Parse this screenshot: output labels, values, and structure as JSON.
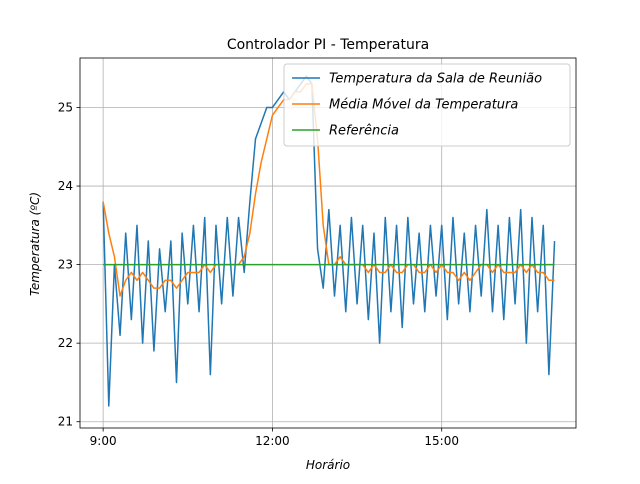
{
  "chart_data": {
    "type": "line",
    "title": "Controlador PI - Temperatura",
    "xlabel": "Horário",
    "ylabel": "Temperatura (ºC)",
    "x": [
      9.0,
      9.1,
      9.2,
      9.3,
      9.4,
      9.5,
      9.6,
      9.7,
      9.8,
      9.9,
      10.0,
      10.1,
      10.2,
      10.3,
      10.4,
      10.5,
      10.6,
      10.7,
      10.8,
      10.9,
      11.0,
      11.1,
      11.2,
      11.3,
      11.4,
      11.5,
      11.6,
      11.7,
      11.8,
      11.9,
      12.0,
      12.1,
      12.2,
      12.3,
      12.4,
      12.5,
      12.6,
      12.7,
      12.8,
      12.9,
      13.0,
      13.1,
      13.2,
      13.3,
      13.4,
      13.5,
      13.6,
      13.7,
      13.8,
      13.9,
      14.0,
      14.1,
      14.2,
      14.3,
      14.4,
      14.5,
      14.6,
      14.7,
      14.8,
      14.9,
      15.0,
      15.1,
      15.2,
      15.3,
      15.4,
      15.5,
      15.6,
      15.7,
      15.8,
      15.9,
      16.0,
      16.1,
      16.2,
      16.3,
      16.4,
      16.5,
      16.6,
      16.7,
      16.8,
      16.9,
      17.0
    ],
    "series": [
      {
        "name": "Temperatura da Sala de Reunião",
        "color": "#1f77b4",
        "values": [
          23.8,
          21.2,
          23.0,
          22.1,
          23.4,
          22.3,
          23.5,
          22.0,
          23.3,
          21.9,
          23.2,
          22.4,
          23.3,
          21.5,
          23.4,
          22.5,
          23.5,
          22.4,
          23.6,
          21.6,
          23.5,
          22.5,
          23.6,
          22.6,
          23.6,
          22.9,
          23.8,
          24.6,
          24.8,
          25.0,
          25.0,
          25.1,
          25.2,
          25.1,
          25.2,
          25.3,
          25.4,
          25.3,
          23.2,
          22.7,
          23.7,
          22.6,
          23.5,
          22.4,
          23.6,
          22.5,
          23.5,
          22.3,
          23.4,
          22.0,
          23.6,
          22.4,
          23.5,
          22.2,
          23.6,
          22.5,
          23.4,
          22.4,
          23.5,
          22.6,
          23.5,
          22.3,
          23.6,
          22.5,
          23.4,
          22.4,
          23.5,
          22.6,
          23.7,
          22.4,
          23.5,
          22.3,
          23.6,
          22.5,
          23.7,
          22.0,
          23.6,
          22.4,
          23.5,
          21.6,
          23.3
        ]
      },
      {
        "name": "Média Móvel da Temperatura",
        "color": "#ff7f0e",
        "values": [
          23.8,
          23.4,
          23.1,
          22.6,
          22.8,
          22.9,
          22.8,
          22.9,
          22.8,
          22.7,
          22.7,
          22.8,
          22.8,
          22.7,
          22.8,
          22.9,
          22.9,
          22.9,
          23.0,
          22.9,
          23.0,
          23.0,
          23.0,
          23.0,
          23.0,
          23.1,
          23.4,
          23.9,
          24.3,
          24.6,
          24.9,
          25.0,
          25.1,
          25.1,
          25.2,
          25.2,
          25.3,
          25.3,
          24.6,
          23.5,
          23.0,
          23.0,
          23.1,
          23.0,
          23.0,
          23.0,
          23.0,
          22.9,
          23.0,
          22.9,
          22.9,
          23.0,
          22.9,
          22.9,
          23.0,
          23.0,
          22.9,
          22.9,
          23.0,
          22.9,
          23.0,
          22.9,
          22.9,
          22.8,
          22.9,
          22.8,
          22.9,
          23.0,
          23.0,
          22.9,
          23.0,
          22.9,
          22.9,
          22.9,
          23.0,
          22.9,
          23.0,
          22.9,
          22.9,
          22.8,
          22.8
        ]
      },
      {
        "name": "Referência",
        "color": "#2ca02c",
        "x": [
          9.0,
          17.0
        ],
        "values": [
          23,
          23
        ]
      }
    ],
    "xlim": [
      8.59,
      17.38
    ],
    "ylim": [
      20.92,
      25.63
    ],
    "xticks": [
      {
        "value": 9,
        "label": "9:00"
      },
      {
        "value": 12,
        "label": "12:00"
      },
      {
        "value": 15,
        "label": "15:00"
      }
    ],
    "yticks": [
      21,
      22,
      23,
      24,
      25
    ],
    "grid": true,
    "legend": "upper right"
  }
}
